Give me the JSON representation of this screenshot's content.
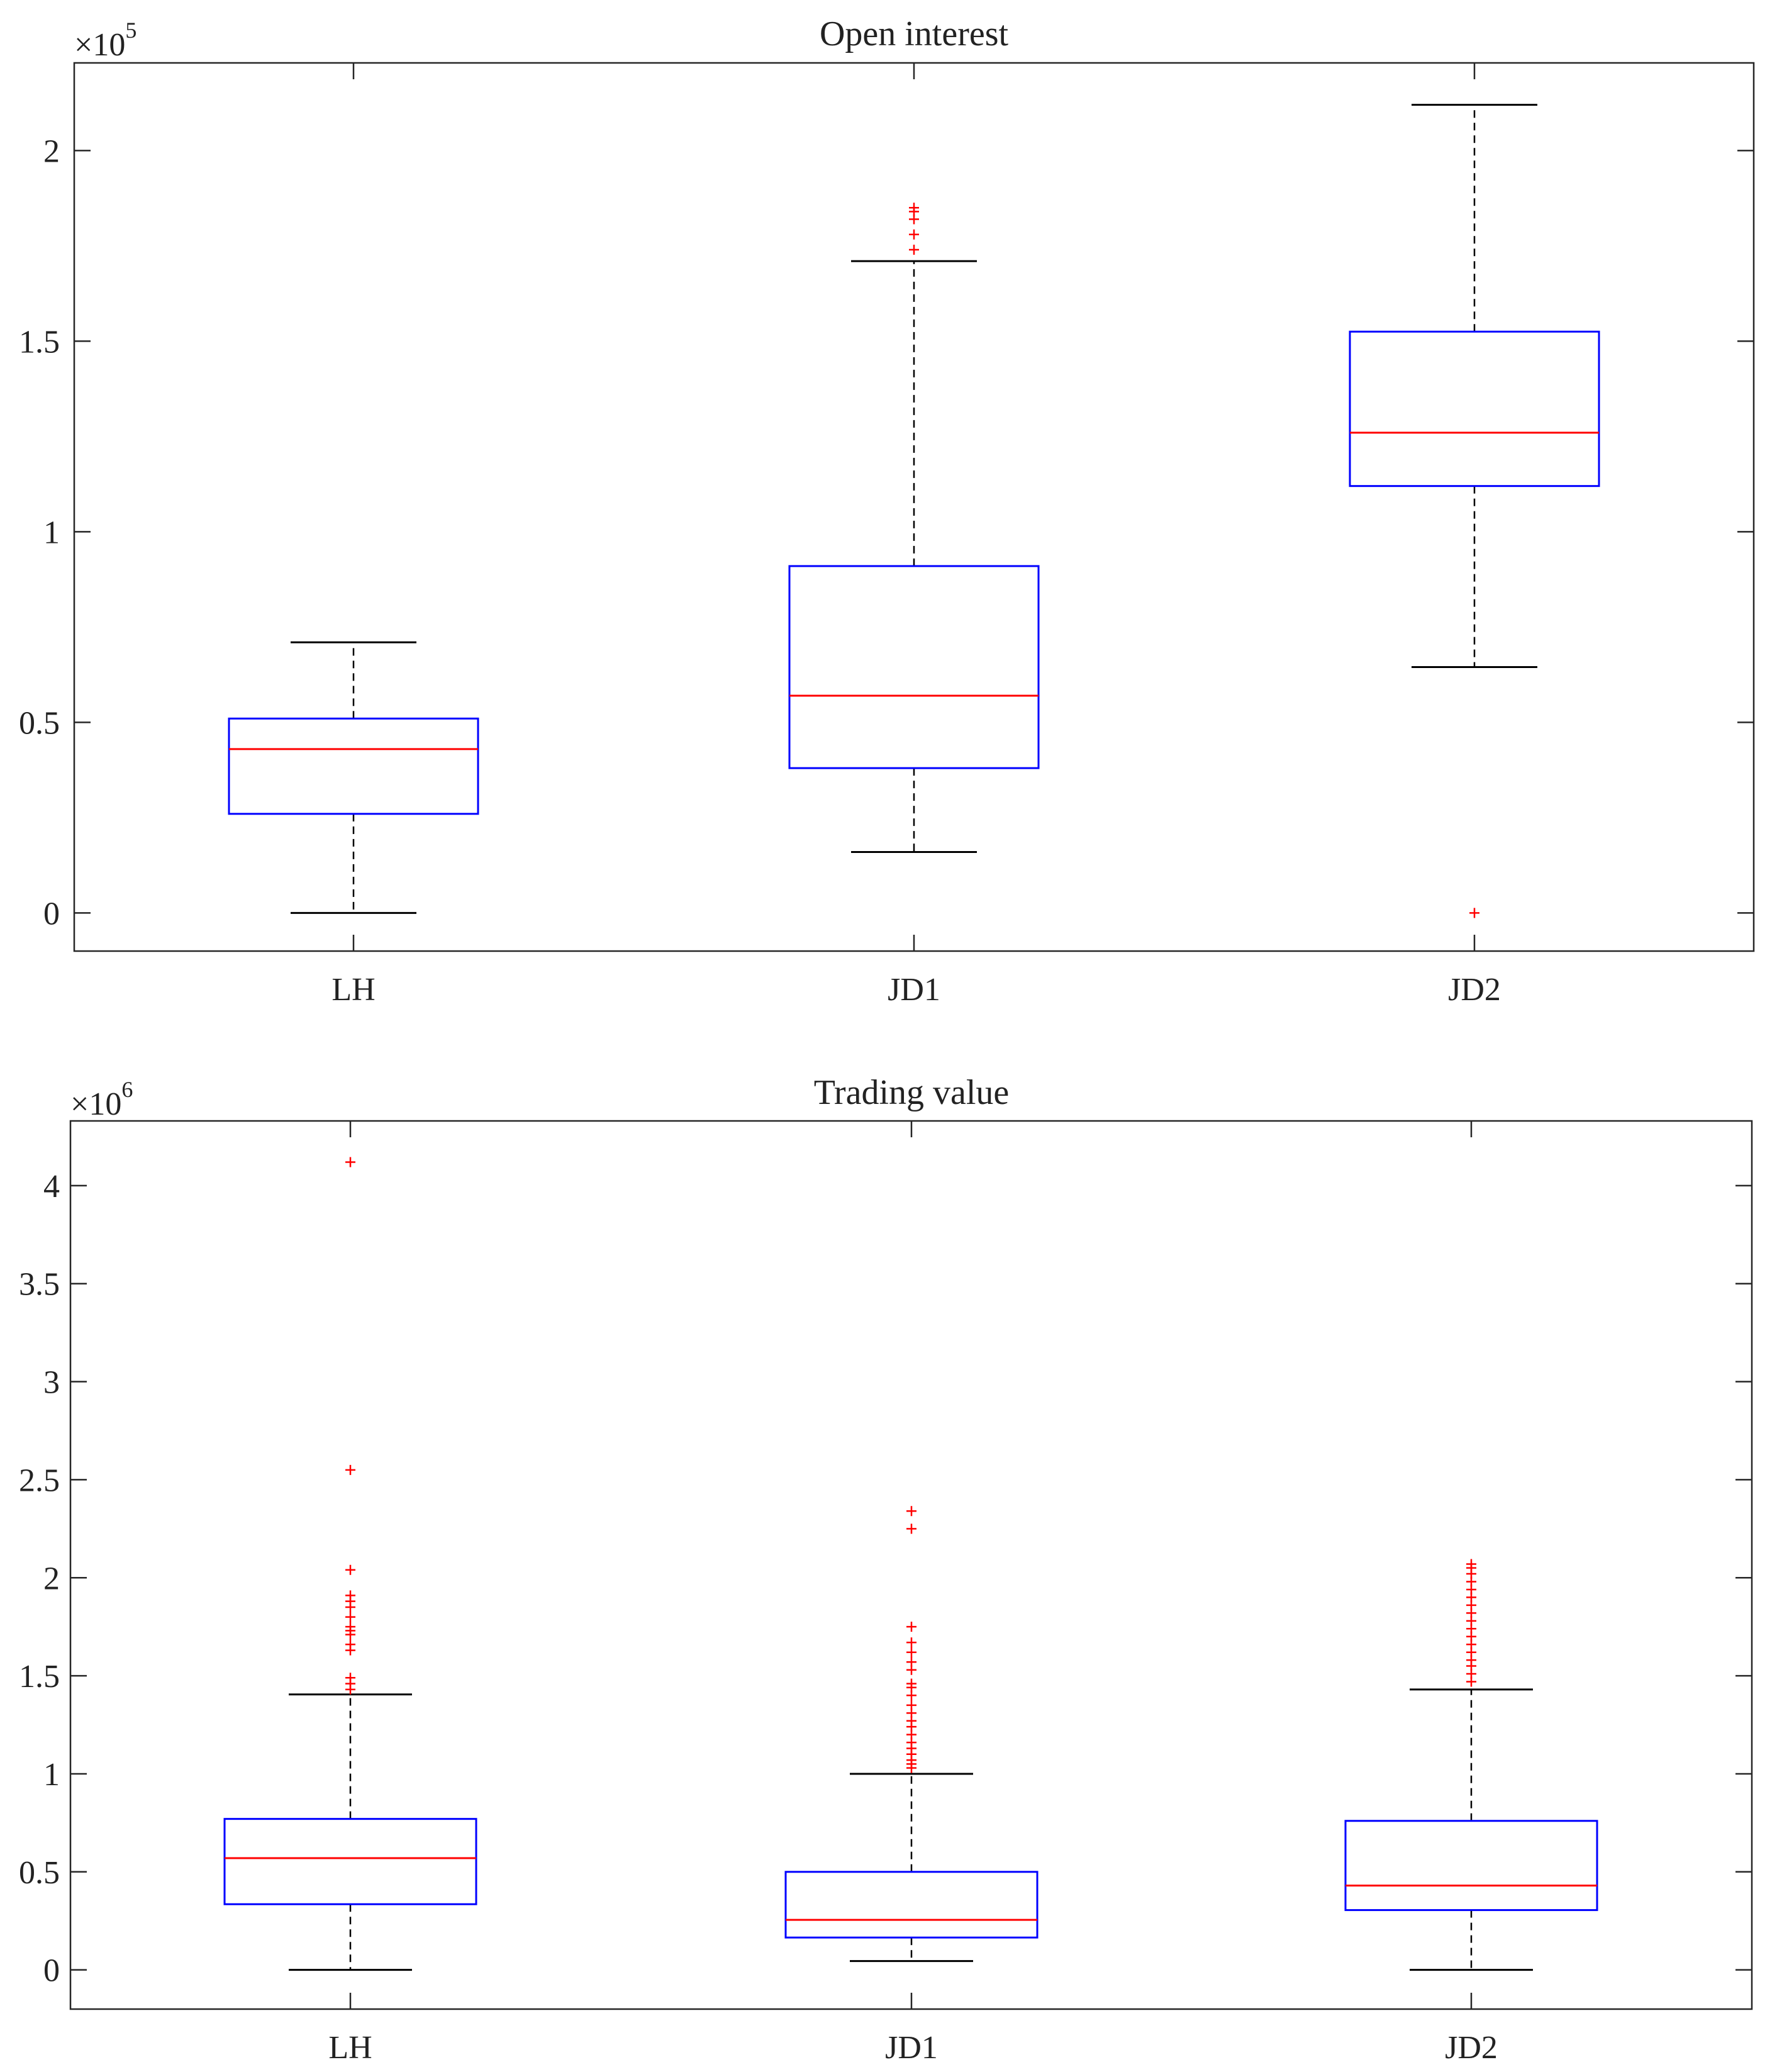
{
  "chart_data": [
    {
      "type": "boxplot",
      "title": "Open interest",
      "xlabel": "",
      "ylabel": "",
      "exponent_label": "×10",
      "exponent_power": "5",
      "categories": [
        "LH",
        "JD1",
        "JD2"
      ],
      "ylim": [
        -0.1,
        2.23
      ],
      "yticks": [
        0,
        0.5,
        1,
        1.5,
        2
      ],
      "ytick_labels": [
        "0",
        "0.5",
        "1",
        "1.5",
        "2"
      ],
      "boxes": [
        {
          "name": "LH",
          "whisker_low": 0.0,
          "q1": 0.26,
          "median": 0.43,
          "q3": 0.51,
          "whisker_high": 0.71,
          "outliers": []
        },
        {
          "name": "JD1",
          "whisker_low": 0.16,
          "q1": 0.38,
          "median": 0.57,
          "q3": 0.91,
          "whisker_high": 1.71,
          "outliers": [
            1.74,
            1.78,
            1.82,
            1.84,
            1.85
          ]
        },
        {
          "name": "JD2",
          "whisker_low": 0.645,
          "q1": 1.12,
          "median": 1.26,
          "q3": 1.525,
          "whisker_high": 2.12,
          "outliers": [
            0.0
          ]
        }
      ],
      "colors": {
        "box": "#0000ff",
        "median": "#ff0000",
        "whisker": "#000000",
        "outlier": "#ff0000"
      }
    },
    {
      "type": "boxplot",
      "title": "Trading value",
      "xlabel": "",
      "ylabel": "",
      "exponent_label": "×10",
      "exponent_power": "6",
      "categories": [
        "LH",
        "JD1",
        "JD2"
      ],
      "ylim": [
        -0.2,
        4.33
      ],
      "yticks": [
        0,
        0.5,
        1,
        1.5,
        2,
        2.5,
        3,
        3.5,
        4
      ],
      "ytick_labels": [
        "0",
        "0.5",
        "1",
        "1.5",
        "2",
        "2.5",
        "3",
        "3.5",
        "4"
      ],
      "boxes": [
        {
          "name": "LH",
          "whisker_low": 0.0,
          "q1": 0.335,
          "median": 0.57,
          "q3": 0.77,
          "whisker_high": 1.405,
          "outliers": [
            1.43,
            1.46,
            1.49,
            1.63,
            1.66,
            1.71,
            1.73,
            1.75,
            1.8,
            1.85,
            1.88,
            1.91,
            2.04,
            2.55,
            4.12
          ]
        },
        {
          "name": "JD1",
          "whisker_low": 0.045,
          "q1": 0.165,
          "median": 0.255,
          "q3": 0.5,
          "whisker_high": 1.0,
          "outliers": [
            1.03,
            1.05,
            1.07,
            1.1,
            1.13,
            1.16,
            1.2,
            1.24,
            1.27,
            1.31,
            1.35,
            1.4,
            1.44,
            1.46,
            1.53,
            1.57,
            1.62,
            1.67,
            1.75,
            2.25,
            2.34
          ]
        },
        {
          "name": "JD2",
          "whisker_low": 0.0,
          "q1": 0.305,
          "median": 0.43,
          "q3": 0.76,
          "whisker_high": 1.43,
          "outliers": [
            1.47,
            1.51,
            1.55,
            1.58,
            1.62,
            1.66,
            1.7,
            1.74,
            1.78,
            1.82,
            1.86,
            1.9,
            1.94,
            1.98,
            2.02,
            2.05,
            2.07
          ]
        }
      ],
      "colors": {
        "box": "#0000ff",
        "median": "#ff0000",
        "whisker": "#000000",
        "outlier": "#ff0000"
      }
    }
  ]
}
